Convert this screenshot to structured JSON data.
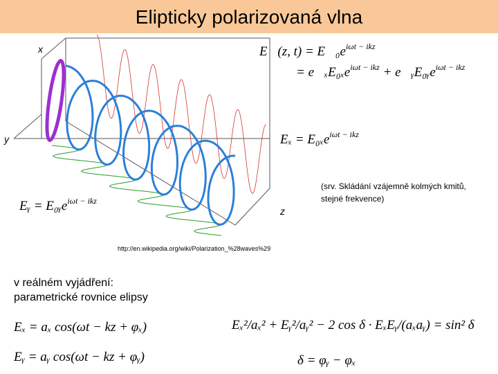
{
  "header": {
    "title": "Elipticky polarizovaná vlna"
  },
  "figure": {
    "axis_x": "x",
    "axis_y": "y",
    "axis_z": "z",
    "equations": [
      [
        "E⃗(z, t) = E⃗₀e",
        "iωt − ikz"
      ],
      [
        "= e⃗ₓE₀ₓe",
        "iωt − ikz",
        " + e⃗ᵧE₀ᵧe",
        "iωt − ikz"
      ],
      [
        "Eₓ = E₀ₓe",
        "iωt − ikz"
      ],
      [
        "Eᵧ = E₀ᵧe",
        "iωt − ikz"
      ]
    ],
    "source": "http://en.wikipedia.org/wiki/Polarization_%28waves%29"
  },
  "note": [
    "(srv. Skládání vzájemně kolmých kmitů,",
    "stejné frekvence)"
  ],
  "real": {
    "heading": [
      "v reálném vyjádření:",
      "parametrické rovnice elipsy"
    ],
    "equations": [
      "Eₓ = aₓ cos(ωt − kz + φₓ)",
      "Eᵧ = aᵧ cos(ωt − kz + φᵧ)"
    ],
    "ellipse": "Eₓ²/aₓ² + Eᵧ²/aᵧ² − 2 cos δ · EₓEᵧ/(aₓaᵧ) = sin² δ",
    "delta": "δ = φᵧ − φₓ"
  }
}
